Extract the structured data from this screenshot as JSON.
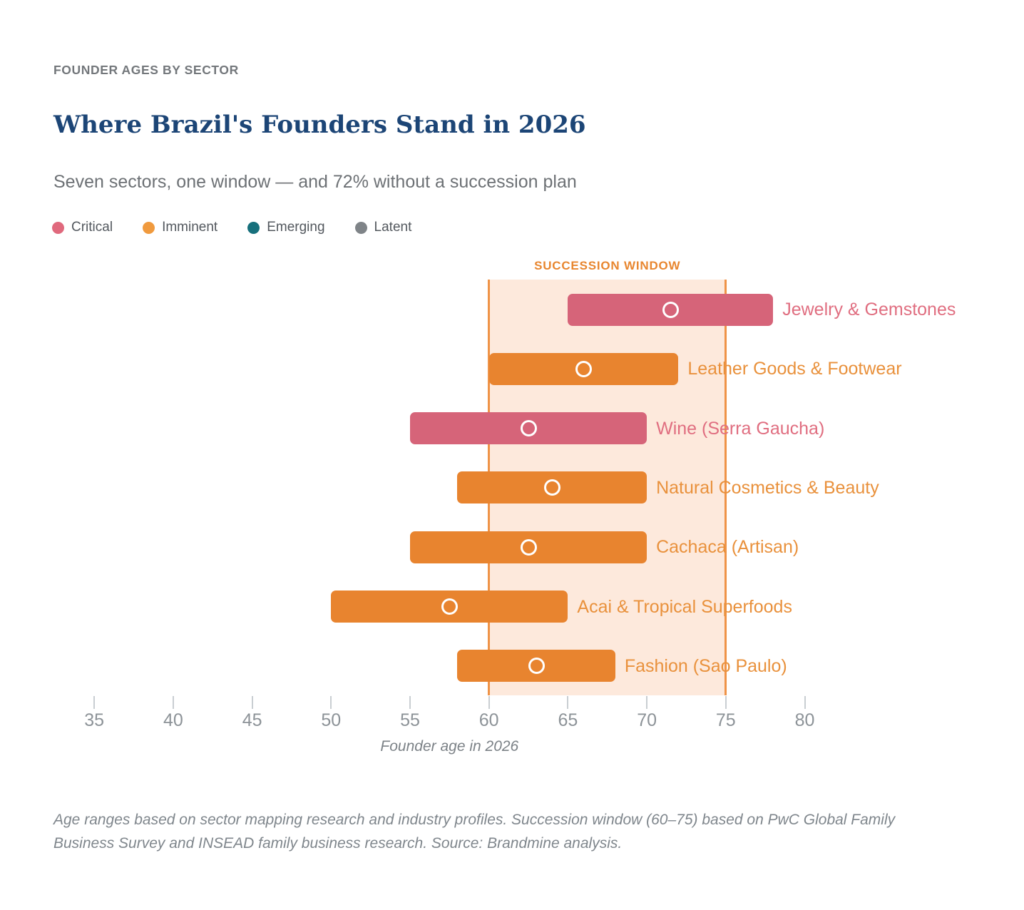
{
  "header": {
    "eyebrow": "FOUNDER AGES BY SECTOR",
    "title": "Where Brazil's Founders Stand in 2026",
    "subtitle": "Seven sectors, one window — and 72% without a succession plan"
  },
  "legend": {
    "items": [
      {
        "label": "Critical",
        "color": "#e0697d"
      },
      {
        "label": "Imminent",
        "color": "#f09a3e"
      },
      {
        "label": "Emerging",
        "color": "#17707c"
      },
      {
        "label": "Latent",
        "color": "#7f8488"
      }
    ]
  },
  "chart_data": {
    "type": "bar",
    "subtype": "horizontal-range-bar",
    "title": "Where Brazil's Founders Stand in 2026",
    "xlabel": "Founder age in 2026",
    "x_ticks": [
      35,
      40,
      45,
      50,
      55,
      60,
      65,
      70,
      75,
      80
    ],
    "axis_range": [
      35,
      80
    ],
    "succession_window": {
      "label": "SUCCESSION WINDOW",
      "start": 60,
      "end": 75
    },
    "series": [
      {
        "sector": "Jewelry & Gemstones",
        "status": "Critical",
        "age_min": 65,
        "age_max": 78,
        "median": 71.5
      },
      {
        "sector": "Leather Goods & Footwear",
        "status": "Imminent",
        "age_min": 60,
        "age_max": 72,
        "median": 66
      },
      {
        "sector": "Wine (Serra Gaucha)",
        "status": "Critical",
        "age_min": 55,
        "age_max": 70,
        "median": 62.5
      },
      {
        "sector": "Natural Cosmetics & Beauty",
        "status": "Imminent",
        "age_min": 58,
        "age_max": 70,
        "median": 64
      },
      {
        "sector": "Cachaca (Artisan)",
        "status": "Imminent",
        "age_min": 55,
        "age_max": 70,
        "median": 62.5
      },
      {
        "sector": "Acai & Tropical Superfoods",
        "status": "Imminent",
        "age_min": 50,
        "age_max": 65,
        "median": 57.5
      },
      {
        "sector": "Fashion (Sao Paulo)",
        "status": "Imminent",
        "age_min": 58,
        "age_max": 68,
        "median": 63
      }
    ],
    "status_colors": {
      "Critical": {
        "bar": "#d66479",
        "label": "#e06e80"
      },
      "Imminent": {
        "bar": "#e8842f",
        "label": "#e9913c"
      },
      "Emerging": {
        "bar": "#17707c",
        "label": "#17707c"
      },
      "Latent": {
        "bar": "#7f8488",
        "label": "#7f8488"
      }
    },
    "window_colors": {
      "fill": "#fde9dc",
      "border": "#ef9347",
      "label": "#e8862f"
    }
  },
  "footnote": "Age ranges based on sector mapping research and industry profiles. Succession window (60–75) based on PwC Global Family Business Survey and INSEAD family business research. Source: Brandmine analysis."
}
